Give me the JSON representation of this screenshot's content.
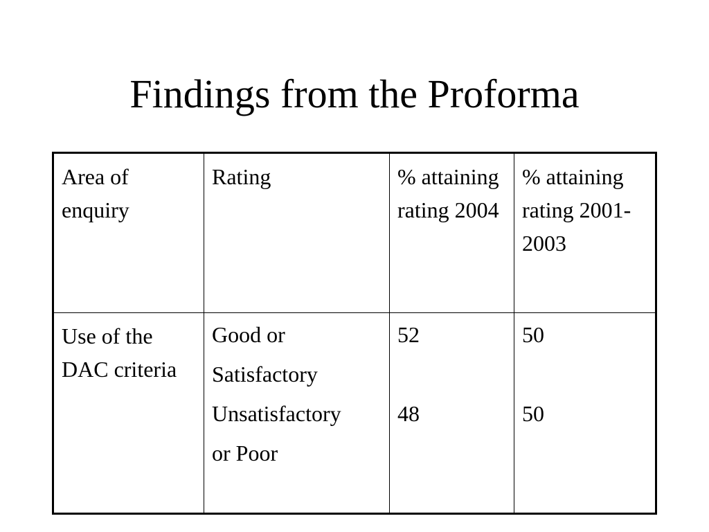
{
  "slide": {
    "title": "Findings from the Proforma"
  },
  "table": {
    "headers": [
      "Area of enquiry",
      "Rating",
      "% attaining rating 2004",
      "% attaining rating 2001-2003"
    ],
    "rows": [
      {
        "area": "Use of the DAC criteria",
        "ratings": [
          "Good or",
          "Satisfactory",
          "Unsatisfactory",
          "or Poor"
        ],
        "values_2004": [
          "52",
          "48"
        ],
        "values_2001_2003": [
          "50",
          "50"
        ]
      }
    ]
  }
}
